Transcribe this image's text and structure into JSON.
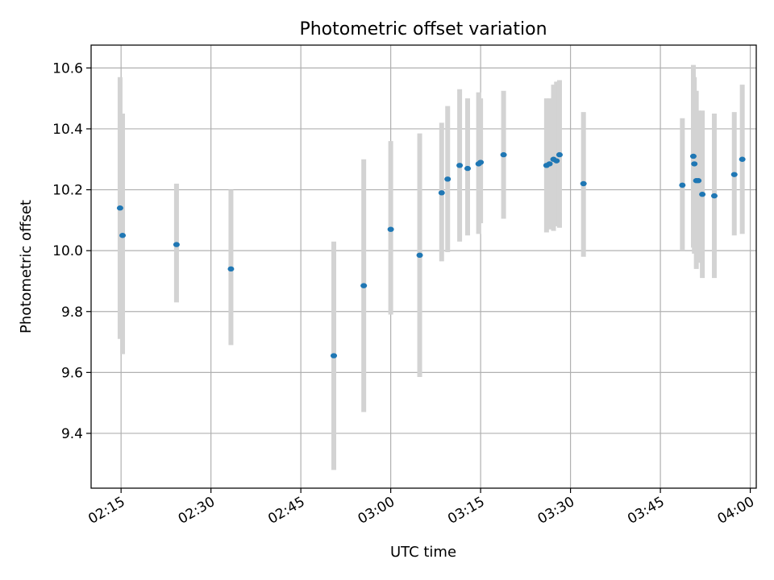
{
  "chart_data": {
    "type": "scatter",
    "title": "Photometric offset variation",
    "xlabel": "UTC time",
    "ylabel": "Photometric offset",
    "x_ticks": [
      "02:15",
      "02:30",
      "02:45",
      "03:00",
      "03:15",
      "03:30",
      "03:45",
      "04:00"
    ],
    "y_ticks": [
      "9.4",
      "9.6",
      "9.8",
      "10.0",
      "10.2",
      "10.4",
      "10.6"
    ],
    "xlim": [
      "02:10",
      "04:01"
    ],
    "ylim": [
      9.22,
      10.675
    ],
    "grid": true,
    "colors": {
      "point": "#1f77b4",
      "errorbar": "#d3d3d3",
      "grid": "#b0b0b0",
      "axes": "#000000"
    },
    "series": [
      {
        "points": [
          {
            "t": "02:14:50",
            "y": 10.14,
            "lo": 9.71,
            "hi": 10.57
          },
          {
            "t": "02:15:15",
            "y": 10.05,
            "lo": 9.66,
            "hi": 10.45
          },
          {
            "t": "02:24:15",
            "y": 10.02,
            "lo": 9.83,
            "hi": 10.22
          },
          {
            "t": "02:33:20",
            "y": 9.94,
            "lo": 9.69,
            "hi": 10.2
          },
          {
            "t": "02:50:30",
            "y": 9.655,
            "lo": 9.28,
            "hi": 10.03
          },
          {
            "t": "02:55:30",
            "y": 9.885,
            "lo": 9.47,
            "hi": 10.3
          },
          {
            "t": "03:00:00",
            "y": 10.07,
            "lo": 9.79,
            "hi": 10.36
          },
          {
            "t": "03:04:50",
            "y": 9.985,
            "lo": 9.585,
            "hi": 10.385
          },
          {
            "t": "03:08:30",
            "y": 10.19,
            "lo": 9.965,
            "hi": 10.42
          },
          {
            "t": "03:09:30",
            "y": 10.235,
            "lo": 9.995,
            "hi": 10.475
          },
          {
            "t": "03:11:30",
            "y": 10.28,
            "lo": 10.03,
            "hi": 10.53
          },
          {
            "t": "03:12:50",
            "y": 10.27,
            "lo": 10.05,
            "hi": 10.5
          },
          {
            "t": "03:14:40",
            "y": 10.285,
            "lo": 10.055,
            "hi": 10.52
          },
          {
            "t": "03:15:00",
            "y": 10.29,
            "lo": 10.09,
            "hi": 10.5
          },
          {
            "t": "03:18:50",
            "y": 10.315,
            "lo": 10.105,
            "hi": 10.525
          },
          {
            "t": "03:26:00",
            "y": 10.28,
            "lo": 10.06,
            "hi": 10.5
          },
          {
            "t": "03:26:30",
            "y": 10.285,
            "lo": 10.07,
            "hi": 10.5
          },
          {
            "t": "03:27:10",
            "y": 10.3,
            "lo": 10.065,
            "hi": 10.545
          },
          {
            "t": "03:27:40",
            "y": 10.295,
            "lo": 10.08,
            "hi": 10.555
          },
          {
            "t": "03:28:10",
            "y": 10.315,
            "lo": 10.075,
            "hi": 10.56
          },
          {
            "t": "03:32:10",
            "y": 10.22,
            "lo": 9.98,
            "hi": 10.455
          },
          {
            "t": "03:48:40",
            "y": 10.215,
            "lo": 10.0,
            "hi": 10.435
          },
          {
            "t": "03:50:30",
            "y": 10.31,
            "lo": 10.01,
            "hi": 10.61
          },
          {
            "t": "03:50:40",
            "y": 10.285,
            "lo": 9.99,
            "hi": 10.57
          },
          {
            "t": "03:51:00",
            "y": 10.23,
            "lo": 9.94,
            "hi": 10.525
          },
          {
            "t": "03:51:20",
            "y": 10.23,
            "lo": 9.96,
            "hi": 10.46
          },
          {
            "t": "03:52:00",
            "y": 10.185,
            "lo": 9.91,
            "hi": 10.46
          },
          {
            "t": "03:54:00",
            "y": 10.18,
            "lo": 9.91,
            "hi": 10.45
          },
          {
            "t": "03:57:20",
            "y": 10.25,
            "lo": 10.05,
            "hi": 10.455
          },
          {
            "t": "03:58:40",
            "y": 10.3,
            "lo": 10.055,
            "hi": 10.545
          }
        ]
      }
    ]
  }
}
